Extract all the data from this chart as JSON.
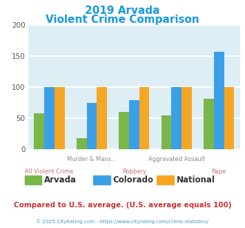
{
  "title_line1": "2019 Arvada",
  "title_line2": "Violent Crime Comparison",
  "title_color": "#1899e0",
  "categories": [
    "All Violent Crime",
    "Murder & Mans...",
    "Robbery",
    "Aggravated Assault",
    "Rape"
  ],
  "cat_labels_top": [
    "",
    "Murder & Mans...",
    "",
    "Aggravated Assault",
    ""
  ],
  "cat_labels_bot": [
    "All Violent Crime",
    "",
    "Robbery",
    "",
    "Rape"
  ],
  "series": {
    "Arvada": [
      58,
      18,
      60,
      55,
      81
    ],
    "Colorado": [
      100,
      75,
      79,
      100,
      157
    ],
    "National": [
      100,
      100,
      100,
      100,
      100
    ]
  },
  "colors": {
    "Arvada": "#7ab648",
    "Colorado": "#3b9fe8",
    "National": "#f5a623"
  },
  "ylim": [
    0,
    200
  ],
  "yticks": [
    0,
    50,
    100,
    150,
    200
  ],
  "plot_bg": "#ddeef5",
  "grid_color": "#ffffff",
  "footer_note": "Compared to U.S. average. (U.S. average equals 100)",
  "footer_color": "#cc3333",
  "copyright": "© 2025 CityRating.com - https://www.cityrating.com/crime-statistics/",
  "copyright_color": "#4499cc",
  "bar_width": 0.24
}
